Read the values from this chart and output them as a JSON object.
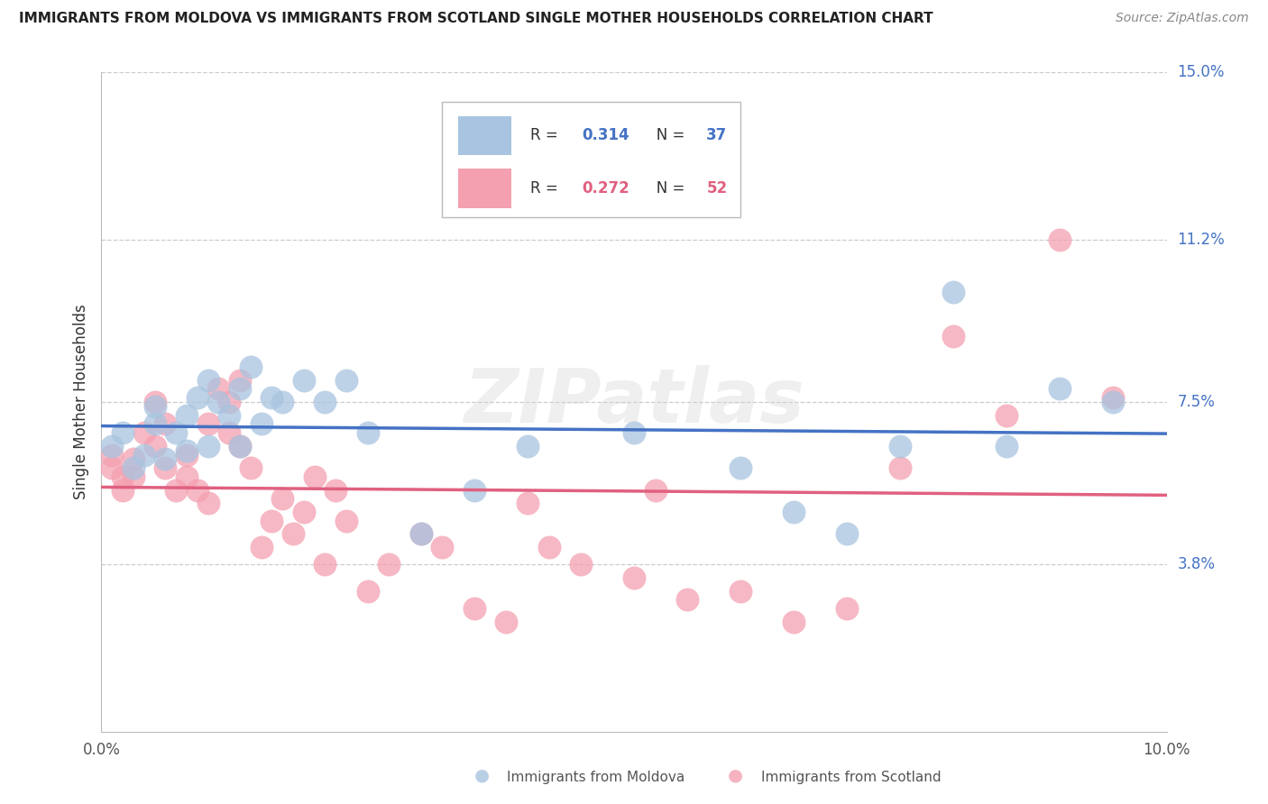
{
  "title": "IMMIGRANTS FROM MOLDOVA VS IMMIGRANTS FROM SCOTLAND SINGLE MOTHER HOUSEHOLDS CORRELATION CHART",
  "source": "Source: ZipAtlas.com",
  "ylabel": "Single Mother Households",
  "xlim": [
    0.0,
    0.1
  ],
  "ylim": [
    0.0,
    0.15
  ],
  "ytick_labels_right": [
    "15.0%",
    "11.2%",
    "7.5%",
    "3.8%"
  ],
  "ytick_values_right": [
    0.15,
    0.112,
    0.075,
    0.038
  ],
  "moldova_R": 0.314,
  "moldova_N": 37,
  "scotland_R": 0.272,
  "scotland_N": 52,
  "moldova_color": "#a8c4e0",
  "scotland_color": "#f4a0b0",
  "moldova_line_color": "#4472c4",
  "scotland_line_color": "#e06080",
  "watermark": "ZIPatlas",
  "moldova_x": [
    0.001,
    0.002,
    0.003,
    0.004,
    0.005,
    0.005,
    0.006,
    0.007,
    0.008,
    0.008,
    0.009,
    0.01,
    0.01,
    0.011,
    0.012,
    0.013,
    0.013,
    0.014,
    0.015,
    0.016,
    0.017,
    0.019,
    0.021,
    0.023,
    0.025,
    0.03,
    0.035,
    0.04,
    0.05,
    0.06,
    0.065,
    0.07,
    0.075,
    0.08,
    0.085,
    0.09,
    0.095
  ],
  "moldova_y": [
    0.065,
    0.068,
    0.06,
    0.063,
    0.07,
    0.074,
    0.062,
    0.068,
    0.072,
    0.064,
    0.076,
    0.065,
    0.08,
    0.075,
    0.072,
    0.065,
    0.078,
    0.083,
    0.07,
    0.076,
    0.075,
    0.08,
    0.075,
    0.08,
    0.068,
    0.045,
    0.055,
    0.065,
    0.068,
    0.06,
    0.05,
    0.045,
    0.065,
    0.1,
    0.065,
    0.078,
    0.075
  ],
  "scotland_x": [
    0.001,
    0.001,
    0.002,
    0.002,
    0.003,
    0.003,
    0.004,
    0.005,
    0.005,
    0.006,
    0.006,
    0.007,
    0.008,
    0.008,
    0.009,
    0.01,
    0.01,
    0.011,
    0.012,
    0.012,
    0.013,
    0.013,
    0.014,
    0.015,
    0.016,
    0.017,
    0.018,
    0.019,
    0.02,
    0.021,
    0.022,
    0.023,
    0.025,
    0.027,
    0.03,
    0.032,
    0.035,
    0.038,
    0.04,
    0.042,
    0.045,
    0.05,
    0.052,
    0.055,
    0.06,
    0.065,
    0.07,
    0.075,
    0.08,
    0.085,
    0.09,
    0.095
  ],
  "scotland_y": [
    0.06,
    0.063,
    0.055,
    0.058,
    0.062,
    0.058,
    0.068,
    0.065,
    0.075,
    0.06,
    0.07,
    0.055,
    0.058,
    0.063,
    0.055,
    0.052,
    0.07,
    0.078,
    0.068,
    0.075,
    0.08,
    0.065,
    0.06,
    0.042,
    0.048,
    0.053,
    0.045,
    0.05,
    0.058,
    0.038,
    0.055,
    0.048,
    0.032,
    0.038,
    0.045,
    0.042,
    0.028,
    0.025,
    0.052,
    0.042,
    0.038,
    0.035,
    0.055,
    0.03,
    0.032,
    0.025,
    0.028,
    0.06,
    0.09,
    0.072,
    0.112,
    0.076
  ]
}
